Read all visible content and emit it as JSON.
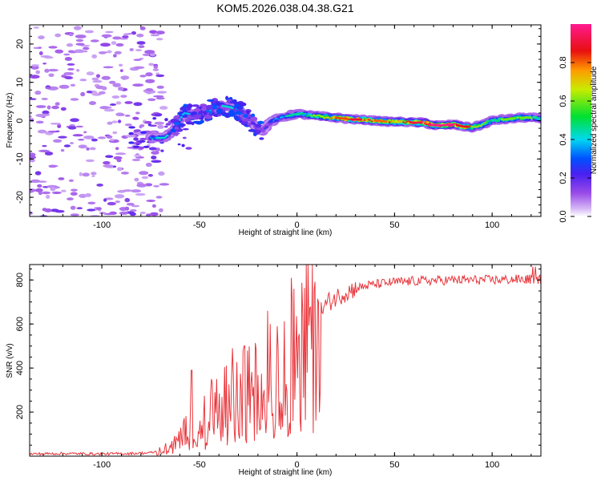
{
  "title": "KOM5.2026.038.04.38.G21",
  "colors": {
    "snr_line": "#e8363c",
    "axis": "#000000",
    "background": "#ffffff"
  },
  "chart_data": [
    {
      "type": "heatmap",
      "name": "spectrogram",
      "xlabel": "Height of straight line (km)",
      "ylabel": "Frequency (Hz)",
      "xlim": [
        -137,
        125
      ],
      "ylim": [
        -25,
        25
      ],
      "xticks": [
        {
          "value": -100,
          "label": "-100"
        },
        {
          "value": -50,
          "label": "-50"
        },
        {
          "value": 0,
          "label": "0"
        },
        {
          "value": 50,
          "label": "50"
        },
        {
          "value": 100,
          "label": "100"
        }
      ],
      "yticks": [
        {
          "value": -20,
          "label": "-20"
        },
        {
          "value": -10,
          "label": "-10"
        },
        {
          "value": 0,
          "label": "0"
        },
        {
          "value": 10,
          "label": "10"
        },
        {
          "value": 20,
          "label": "20"
        }
      ],
      "noise_region_x": [
        -137,
        -68
      ],
      "ridge": {
        "x": [
          -75,
          -68,
          -63,
          -58,
          -52,
          -46,
          -40,
          -34,
          -28,
          -24,
          -20,
          -17,
          -14,
          -10,
          -5,
          0,
          5,
          10,
          15,
          20,
          25,
          30,
          35,
          40,
          45,
          50,
          55,
          60,
          65,
          70,
          75,
          80,
          85,
          90,
          95,
          100,
          105,
          110,
          115,
          120,
          125
        ],
        "y": [
          -4.5,
          -4.5,
          -2.5,
          2.0,
          1.5,
          2.5,
          4.0,
          3.5,
          2.0,
          0.5,
          -2.5,
          -2.5,
          -0.5,
          0.5,
          1.2,
          1.8,
          1.5,
          1.2,
          1.0,
          0.8,
          0.5,
          0.3,
          0.2,
          0.0,
          -0.2,
          -0.3,
          -0.3,
          -0.5,
          -0.5,
          -1.2,
          -1.2,
          -1.0,
          -1.5,
          -1.8,
          -1.0,
          0.0,
          0.3,
          0.5,
          0.8,
          0.8,
          0.5
        ],
        "amp": [
          0.35,
          0.35,
          0.25,
          0.3,
          0.35,
          0.38,
          0.4,
          0.35,
          0.3,
          0.25,
          0.2,
          0.25,
          0.3,
          0.35,
          0.4,
          0.45,
          0.5,
          0.6,
          0.7,
          0.8,
          0.85,
          0.9,
          0.85,
          0.8,
          0.75,
          0.8,
          0.85,
          0.9,
          0.95,
          1.0,
          1.0,
          0.95,
          0.9,
          0.7,
          0.6,
          0.5,
          0.55,
          0.6,
          0.65,
          0.55,
          0.45
        ]
      },
      "colorbar": {
        "label": "Normalized spectral amplitude",
        "range": [
          0,
          1
        ],
        "ticks": [
          {
            "value": 0.0,
            "label": "0.0"
          },
          {
            "value": 0.2,
            "label": "0.2"
          },
          {
            "value": 0.4,
            "label": "0.4"
          },
          {
            "value": 0.6,
            "label": "0.6"
          },
          {
            "value": 0.8,
            "label": "0.8"
          }
        ],
        "colormap": [
          "#ffffff",
          "#c8a2f0",
          "#7a1fe0",
          "#1a22e6",
          "#00e6f0",
          "#00e030",
          "#d8e800",
          "#ff8c00",
          "#e81010",
          "#ff1090"
        ]
      }
    },
    {
      "type": "line",
      "name": "snr",
      "xlabel": "Height of straight line (km)",
      "ylabel": "SNR (v/v)",
      "xlim": [
        -137,
        125
      ],
      "ylim": [
        0,
        870
      ],
      "xticks": [
        {
          "value": -100,
          "label": "-100"
        },
        {
          "value": -50,
          "label": "-50"
        },
        {
          "value": 0,
          "label": "0"
        },
        {
          "value": 50,
          "label": "50"
        },
        {
          "value": 100,
          "label": "100"
        }
      ],
      "yticks": [
        {
          "value": 200,
          "label": "200"
        },
        {
          "value": 400,
          "label": "400"
        },
        {
          "value": 600,
          "label": "600"
        },
        {
          "value": 800,
          "label": "800"
        }
      ],
      "series": [
        {
          "name": "SNR",
          "x": [
            -137,
            -120,
            -100,
            -85,
            -75,
            -70,
            -66,
            -62,
            -58,
            -55,
            -52,
            -50,
            -46,
            -42,
            -38,
            -34,
            -30,
            -26,
            -22,
            -18,
            -15,
            -12,
            -9,
            -6,
            -3,
            0,
            4,
            8,
            12,
            16,
            20,
            24,
            28,
            32,
            36,
            40,
            45,
            50,
            55,
            60,
            70,
            80,
            90,
            100,
            110,
            120,
            125
          ],
          "y": [
            10,
            12,
            10,
            12,
            15,
            25,
            45,
            70,
            110,
            150,
            170,
            180,
            200,
            230,
            260,
            280,
            300,
            320,
            340,
            360,
            380,
            420,
            460,
            500,
            540,
            560,
            590,
            620,
            660,
            700,
            720,
            740,
            755,
            765,
            775,
            780,
            785,
            790,
            792,
            795,
            797,
            800,
            800,
            800,
            802,
            803,
            803
          ]
        },
        {
          "name": "peaks",
          "x": [
            -54,
            -44,
            -33,
            -27,
            -15,
            -10
          ],
          "y": [
            390,
            350,
            490,
            500,
            660,
            590
          ]
        }
      ]
    }
  ]
}
